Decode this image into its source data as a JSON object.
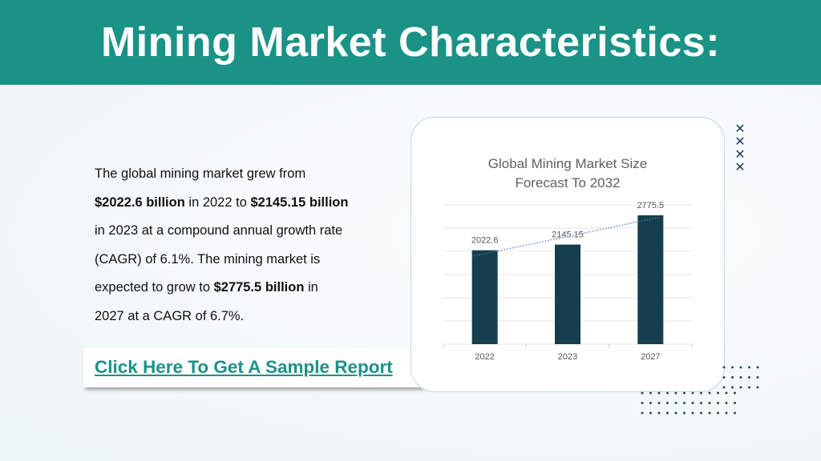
{
  "header": {
    "title": "Mining Market Characteristics:"
  },
  "body": {
    "t1": "The global mining market grew from",
    "b1": "$2022.6 billion",
    "t2": " in 2022 to ",
    "b2": "$2145.15 billion",
    "t3": "in 2023 at a compound annual growth rate",
    "t4": "(CAGR) of 6.1%. The mining market is",
    "t5": "expected to grow to ",
    "b3": "$2775.5 billion",
    "t6": " in",
    "t7": "2027 at a CAGR of 6.7%."
  },
  "cta": {
    "label": "Click Here To Get A Sample Report"
  },
  "decor": {
    "cross_glyph": "✕"
  },
  "colors": {
    "header": "#1b9286",
    "bar": "#163e4e",
    "link": "#1b9286"
  },
  "chart_data": {
    "type": "bar",
    "title": "Global Mining Market Size Forecast To 2032",
    "categories": [
      "2022",
      "2023",
      "2027"
    ],
    "values": [
      2022.6,
      2145.15,
      2775.5
    ],
    "data_labels": [
      "2022.6",
      "2145.15",
      "2775.5"
    ],
    "ylim": [
      0,
      3000
    ],
    "trendline": "dotted-linear",
    "grid": true,
    "legend": "none"
  }
}
